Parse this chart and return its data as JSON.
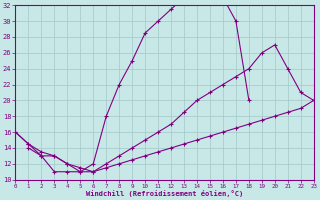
{
  "xlabel": "Windchill (Refroidissement éolien,°C)",
  "bg_color": "#c8e8e8",
  "grid_color": "#a8cccc",
  "line_color": "#800080",
  "xlim": [
    0,
    23
  ],
  "ylim": [
    10,
    32
  ],
  "xticks": [
    0,
    1,
    2,
    3,
    4,
    5,
    6,
    7,
    8,
    9,
    10,
    11,
    12,
    13,
    14,
    15,
    16,
    17,
    18,
    19,
    20,
    21,
    22,
    23
  ],
  "yticks": [
    10,
    12,
    14,
    16,
    18,
    20,
    22,
    24,
    26,
    28,
    30,
    32
  ],
  "curve1_x": [
    0,
    1,
    2,
    3,
    4,
    5,
    6,
    7,
    8,
    9,
    10,
    11,
    12,
    13,
    14,
    15,
    16,
    17,
    18
  ],
  "curve1_y": [
    16,
    14.5,
    13,
    11,
    11,
    11,
    12,
    18,
    22,
    25,
    28.5,
    30,
    31.5,
    33,
    33,
    33,
    33,
    30,
    20
  ],
  "curve2_x": [
    1,
    2,
    3,
    4,
    5,
    6,
    7,
    8,
    9,
    10,
    11,
    12,
    13,
    14,
    15,
    16,
    17,
    18,
    19,
    20,
    21,
    22,
    23
  ],
  "curve2_y": [
    14,
    13,
    13,
    12,
    11,
    11,
    12,
    13,
    14,
    15,
    16,
    17,
    18.5,
    20,
    21,
    22,
    23,
    24,
    26,
    27,
    24,
    21,
    20
  ],
  "curve3_x": [
    0,
    1,
    2,
    3,
    4,
    5,
    6,
    7,
    8,
    9,
    10,
    11,
    12,
    13,
    14,
    15,
    16,
    17,
    18,
    19,
    20,
    21,
    22,
    23
  ],
  "curve3_y": [
    16,
    14.5,
    13.5,
    13,
    12,
    11.5,
    11,
    11.5,
    12,
    12.5,
    13,
    13.5,
    14,
    14.5,
    15,
    15.5,
    16,
    16.5,
    17,
    17.5,
    18,
    18.5,
    19,
    20
  ]
}
